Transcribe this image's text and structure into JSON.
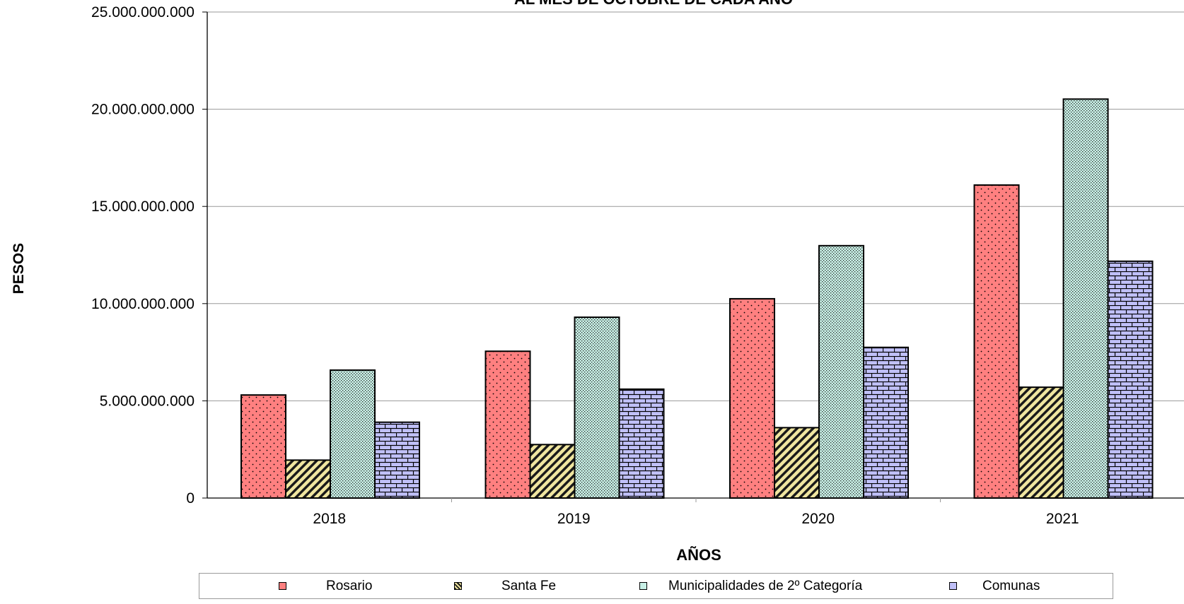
{
  "chart_data": {
    "type": "bar",
    "title": "AL MES DE OCTUBRE  DE CADA AÑO",
    "xlabel": "AÑOS",
    "ylabel": "PESOS",
    "categories": [
      "2018",
      "2019",
      "2020",
      "2021"
    ],
    "ylim": [
      0,
      25000000000
    ],
    "yticks": [
      0,
      5000000000,
      10000000000,
      15000000000,
      20000000000,
      25000000000
    ],
    "ytick_labels": [
      "0",
      "5.000.000.000",
      "10.000.000.000",
      "15.000.000.000",
      "20.000.000.000",
      "25.000.000.000"
    ],
    "grid": true,
    "legend_position": "bottom",
    "series": [
      {
        "name": "Rosario",
        "color": "#ff8080",
        "pattern": "dots",
        "values": [
          5300000000,
          7550000000,
          10250000000,
          16100000000
        ]
      },
      {
        "name": "Santa Fe",
        "color": "#f0e6a0",
        "pattern": "diagonal",
        "values": [
          1950000000,
          2750000000,
          3620000000,
          5700000000
        ]
      },
      {
        "name": "Municipalidades de 2º Categoría",
        "color": "#c8f0e6",
        "pattern": "checker",
        "values": [
          6580000000,
          9300000000,
          12980000000,
          20520000000
        ]
      },
      {
        "name": "Comunas",
        "color": "#c0c0f8",
        "pattern": "brick",
        "values": [
          3900000000,
          5600000000,
          7750000000,
          12180000000
        ]
      }
    ]
  }
}
